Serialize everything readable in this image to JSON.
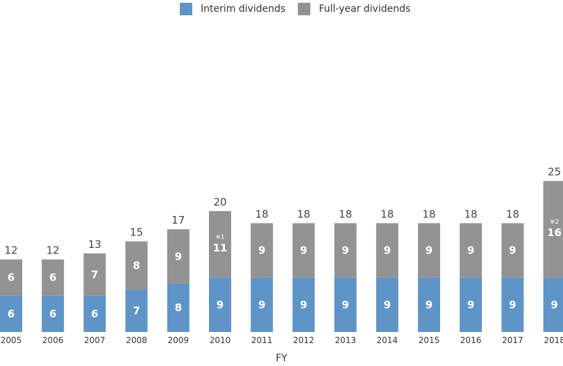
{
  "chart_data": {
    "type": "bar",
    "stacked": true,
    "categories": [
      "2005",
      "2006",
      "2007",
      "2008",
      "2009",
      "2010",
      "2011",
      "2012",
      "2013",
      "2014",
      "2015",
      "2016",
      "2017",
      "2018"
    ],
    "series": [
      {
        "name": "Interim dividends",
        "color": "#5f94c6",
        "values": [
          6,
          6,
          6,
          7,
          8,
          9,
          9,
          9,
          9,
          9,
          9,
          9,
          9,
          9
        ]
      },
      {
        "name": "Full-year dividends",
        "color": "#939393",
        "values": [
          6,
          6,
          7,
          8,
          9,
          11,
          9,
          9,
          9,
          9,
          9,
          9,
          9,
          16
        ]
      }
    ],
    "totals": [
      12,
      12,
      13,
      15,
      17,
      20,
      18,
      18,
      18,
      18,
      18,
      18,
      18,
      25
    ],
    "annotations": [
      {
        "category": "2010",
        "series": "Full-year dividends",
        "text": "※1"
      },
      {
        "category": "2018",
        "series": "Full-year dividends",
        "text": "※2"
      }
    ],
    "xlabel": "FY",
    "ylabel": "",
    "ylim": [
      0,
      25
    ],
    "legend": "top-center",
    "grid": false
  }
}
